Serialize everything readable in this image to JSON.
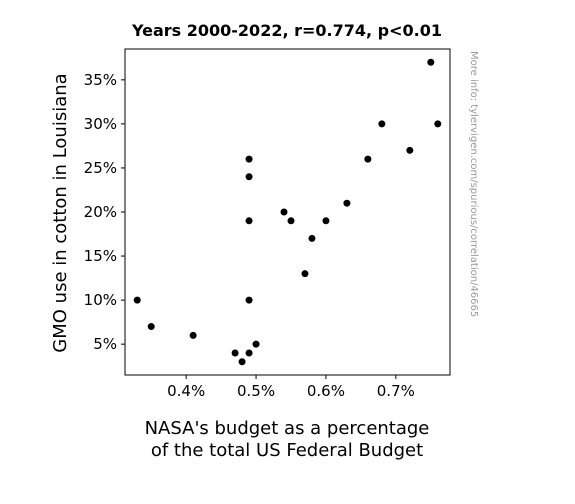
{
  "chart_data": {
    "type": "scatter",
    "title": "Years 2000-2022, r=0.774, p<0.01",
    "xlabel": "NASA's budget as a percentage\nof the total US Federal Budget",
    "ylabel": "GMO use in cotton in Louisiana",
    "watermark": "More info: tylervigen.com/spurious/correlation/46665",
    "xlim": [
      0.3125,
      0.7775
    ],
    "ylim": [
      1.5,
      38.5
    ],
    "x_ticks": [
      {
        "value": 0.4,
        "label": "0.4%"
      },
      {
        "value": 0.5,
        "label": "0.5%"
      },
      {
        "value": 0.6,
        "label": "0.6%"
      },
      {
        "value": 0.7,
        "label": "0.7%"
      }
    ],
    "y_ticks": [
      {
        "value": 5,
        "label": "5%"
      },
      {
        "value": 10,
        "label": "10%"
      },
      {
        "value": 15,
        "label": "15%"
      },
      {
        "value": 20,
        "label": "20%"
      },
      {
        "value": 25,
        "label": "25%"
      },
      {
        "value": 30,
        "label": "30%"
      },
      {
        "value": 35,
        "label": "35%"
      }
    ],
    "grid": false,
    "point_color": "#000000",
    "points": [
      {
        "x": 0.33,
        "y": 10
      },
      {
        "x": 0.35,
        "y": 7
      },
      {
        "x": 0.41,
        "y": 6
      },
      {
        "x": 0.47,
        "y": 4
      },
      {
        "x": 0.48,
        "y": 3
      },
      {
        "x": 0.49,
        "y": 4
      },
      {
        "x": 0.49,
        "y": 10
      },
      {
        "x": 0.49,
        "y": 19
      },
      {
        "x": 0.49,
        "y": 24
      },
      {
        "x": 0.49,
        "y": 26
      },
      {
        "x": 0.5,
        "y": 5
      },
      {
        "x": 0.54,
        "y": 20
      },
      {
        "x": 0.55,
        "y": 19
      },
      {
        "x": 0.57,
        "y": 13
      },
      {
        "x": 0.58,
        "y": 17
      },
      {
        "x": 0.6,
        "y": 19
      },
      {
        "x": 0.63,
        "y": 21
      },
      {
        "x": 0.66,
        "y": 26
      },
      {
        "x": 0.68,
        "y": 30
      },
      {
        "x": 0.72,
        "y": 27
      },
      {
        "x": 0.75,
        "y": 37
      },
      {
        "x": 0.76,
        "y": 30
      }
    ]
  }
}
